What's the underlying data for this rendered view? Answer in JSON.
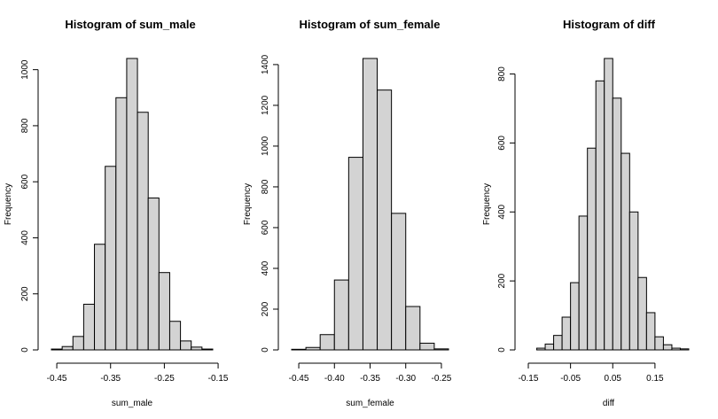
{
  "chart_data": [
    {
      "type": "bar",
      "title": "Histogram of sum_male",
      "xlabel": "sum_male",
      "ylabel": "Frequency",
      "bin_edges": [
        -0.46,
        -0.44,
        -0.42,
        -0.4,
        -0.38,
        -0.36,
        -0.34,
        -0.32,
        -0.3,
        -0.28,
        -0.26,
        -0.24,
        -0.22,
        -0.2,
        -0.18,
        -0.16
      ],
      "values": [
        3,
        12,
        48,
        163,
        377,
        655,
        900,
        1040,
        848,
        542,
        276,
        102,
        32,
        10,
        3
      ],
      "xlim": [
        -0.46,
        -0.16
      ],
      "ylim": [
        0,
        1040
      ],
      "xticks": [
        -0.45,
        -0.35,
        -0.25,
        -0.15
      ],
      "xtick_labels": [
        "-0.45",
        "-0.35",
        "-0.25",
        "-0.15"
      ],
      "yticks": [
        0,
        200,
        400,
        600,
        800,
        1000
      ],
      "ytick_labels": [
        "0",
        "200",
        "400",
        "600",
        "800",
        "1000"
      ],
      "bar_color": "#d3d3d3"
    },
    {
      "type": "bar",
      "title": "Histogram of sum_female",
      "xlabel": "sum_female",
      "ylabel": "Frequency",
      "bin_edges": [
        -0.46,
        -0.44,
        -0.42,
        -0.4,
        -0.38,
        -0.36,
        -0.34,
        -0.32,
        -0.3,
        -0.28,
        -0.26,
        -0.24
      ],
      "values": [
        3,
        12,
        75,
        343,
        945,
        1430,
        1275,
        670,
        213,
        33,
        5
      ],
      "xlim": [
        -0.46,
        -0.24
      ],
      "ylim": [
        0,
        1430
      ],
      "xticks": [
        -0.45,
        -0.4,
        -0.35,
        -0.3,
        -0.25
      ],
      "xtick_labels": [
        "-0.45",
        "-0.40",
        "-0.35",
        "-0.30",
        "-0.25"
      ],
      "yticks": [
        0,
        200,
        400,
        600,
        800,
        1000,
        1200,
        1400
      ],
      "ytick_labels": [
        "0",
        "200",
        "400",
        "600",
        "800",
        "1000",
        "1200",
        "1400"
      ],
      "bar_color": "#d3d3d3"
    },
    {
      "type": "bar",
      "title": "Histogram of diff",
      "xlabel": "diff",
      "ylabel": "Frequency",
      "bin_edges": [
        -0.15,
        -0.13,
        -0.11,
        -0.09,
        -0.07,
        -0.05,
        -0.03,
        -0.01,
        0.01,
        0.03,
        0.05,
        0.07,
        0.09,
        0.11,
        0.13,
        0.15,
        0.17,
        0.19,
        0.21,
        0.23
      ],
      "values": [
        0,
        5,
        17,
        42,
        95,
        195,
        388,
        585,
        780,
        845,
        730,
        570,
        400,
        210,
        108,
        38,
        15,
        5,
        3
      ],
      "xlim": [
        -0.15,
        0.23
      ],
      "ylim": [
        0,
        845
      ],
      "xticks": [
        -0.15,
        -0.05,
        0.05,
        0.15
      ],
      "xtick_labels": [
        "-0.15",
        "-0.05",
        "0.05",
        "0.15"
      ],
      "yticks": [
        0,
        200,
        400,
        600,
        800
      ],
      "ytick_labels": [
        "0",
        "200",
        "400",
        "600",
        "800"
      ],
      "bar_color": "#d3d3d3"
    }
  ]
}
